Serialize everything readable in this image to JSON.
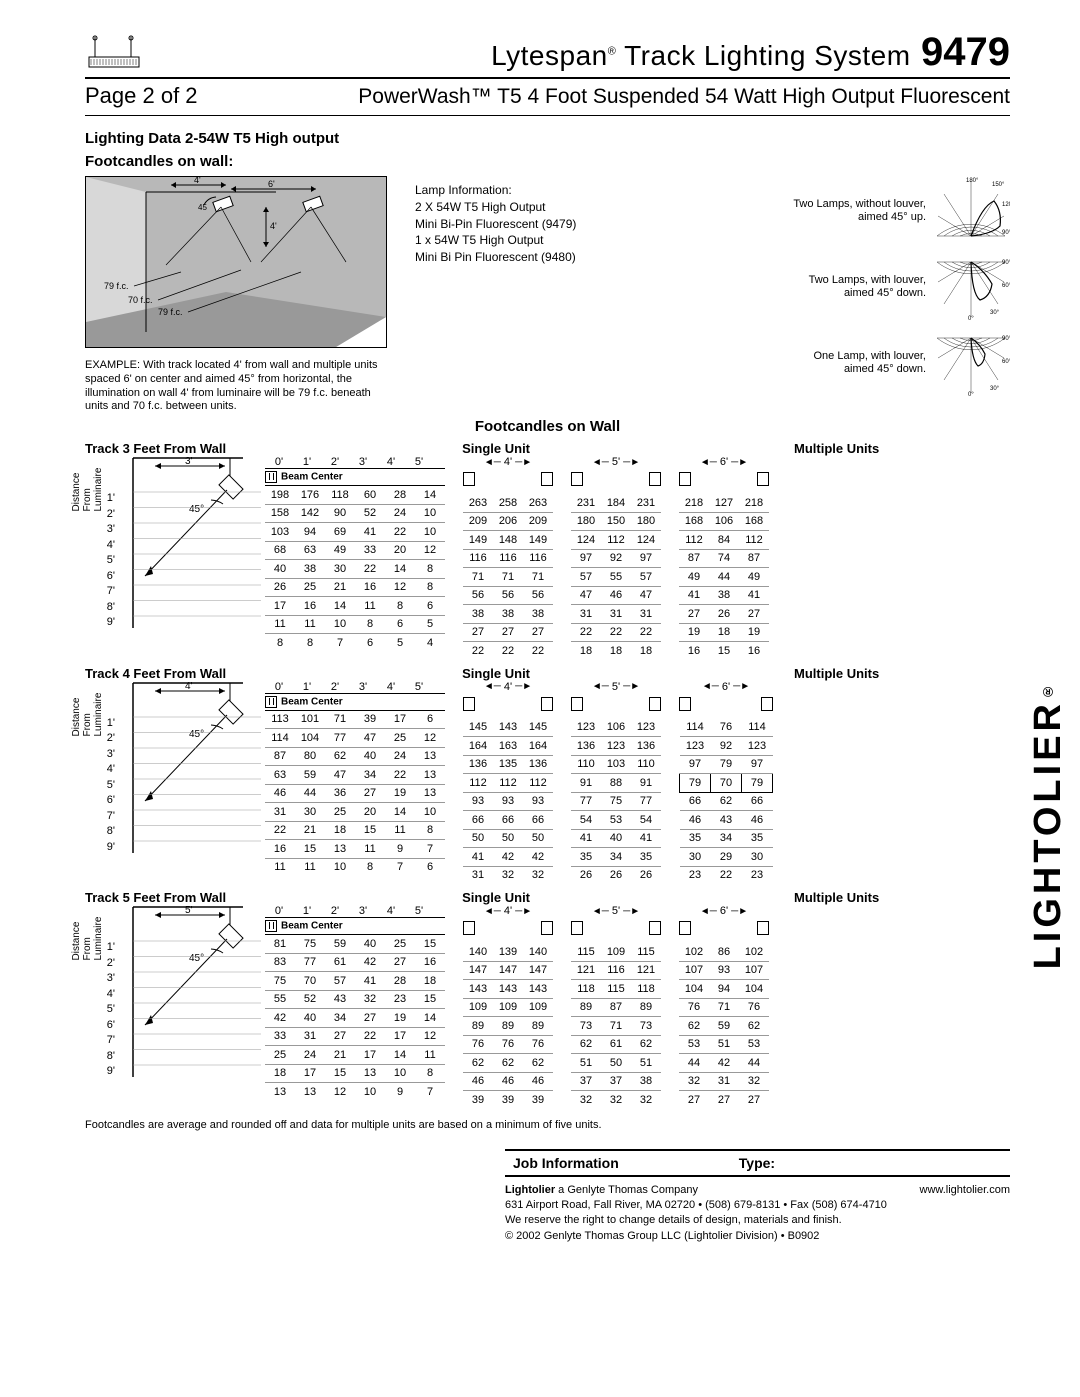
{
  "header": {
    "title": "Lytespan",
    "title_suffix": " Track Lighting System",
    "model": "9479",
    "page": "Page 2 of 2",
    "subtitle": "PowerWash™ T5 4 Foot Suspended 54 Watt High Output Fluorescent"
  },
  "section": {
    "title": "Lighting Data 2-54W T5 High output",
    "sub": "Footcandles on wall:"
  },
  "lamp_info": [
    "Lamp Information:",
    "2 X 54W T5 High Output",
    "Mini Bi-Pin Fluorescent (9479)",
    "1 x 54W T5 High Output",
    "Mini Bi Pin Fluorescent (9480)"
  ],
  "example_caption": "EXAMPLE:  With track located 4' from wall and multiple units spaced 6' on center and aimed 45° from horizontal, the illumination on wall 4' from luminaire will be 79 f.c. beneath units and 70 f.c. between units.",
  "example_labels": {
    "d1": "4'",
    "d2": "6'",
    "angle": "45",
    "d3": "4'",
    "fc1": "79 f.c.",
    "fc2": "70 f.c.",
    "fc3": "79 f.c."
  },
  "polar": [
    {
      "label": "Two Lamps, without louver,\naimed 45° up.",
      "angles": [
        "180°",
        "150°",
        "120°",
        "90°"
      ]
    },
    {
      "label": "Two Lamps, with louver,\naimed 45° down.",
      "angles": [
        "90°",
        "60°",
        "30°",
        "0°"
      ]
    },
    {
      "label": "One Lamp, with louver,\naimed 45° down.",
      "angles": [
        "90°",
        "60°",
        "30°",
        "0°"
      ]
    }
  ],
  "fc_heading": "Footcandles on Wall",
  "row_labels": [
    "1'",
    "2'",
    "3'",
    "4'",
    "5'",
    "6'",
    "7'",
    "8'",
    "9'"
  ],
  "col_headers": [
    "0'",
    "1'",
    "2'",
    "3'",
    "4'",
    "5'"
  ],
  "beam_center": "Beam Center",
  "mu_spacings": [
    "4'",
    "5'",
    "6'"
  ],
  "blocks": [
    {
      "title": "Track 3 Feet From Wall",
      "single_title": "Single Unit",
      "mu_title": "Multiple  Units",
      "diag_dim": "3'",
      "angle": "45°",
      "single": [
        [
          198,
          176,
          118,
          60,
          28,
          14
        ],
        [
          158,
          142,
          90,
          52,
          24,
          10
        ],
        [
          103,
          94,
          69,
          41,
          22,
          10
        ],
        [
          68,
          63,
          49,
          33,
          20,
          12
        ],
        [
          40,
          38,
          30,
          22,
          14,
          8
        ],
        [
          26,
          25,
          21,
          16,
          12,
          8
        ],
        [
          17,
          16,
          14,
          11,
          8,
          6
        ],
        [
          11,
          11,
          10,
          8,
          6,
          5
        ],
        [
          8,
          8,
          7,
          6,
          5,
          4
        ]
      ],
      "mu": {
        "4": [
          [
            263,
            258,
            263
          ],
          [
            209,
            206,
            209
          ],
          [
            149,
            148,
            149
          ],
          [
            116,
            116,
            116
          ],
          [
            71,
            71,
            71
          ],
          [
            56,
            56,
            56
          ],
          [
            38,
            38,
            38
          ],
          [
            27,
            27,
            27
          ],
          [
            22,
            22,
            22
          ]
        ],
        "5": [
          [
            231,
            184,
            231
          ],
          [
            180,
            150,
            180
          ],
          [
            124,
            112,
            124
          ],
          [
            97,
            92,
            97
          ],
          [
            57,
            55,
            57
          ],
          [
            47,
            46,
            47
          ],
          [
            31,
            31,
            31
          ],
          [
            22,
            22,
            22
          ],
          [
            18,
            18,
            18
          ]
        ],
        "6": [
          [
            218,
            127,
            218
          ],
          [
            168,
            106,
            168
          ],
          [
            112,
            84,
            112
          ],
          [
            87,
            74,
            87
          ],
          [
            49,
            44,
            49
          ],
          [
            41,
            38,
            41
          ],
          [
            27,
            26,
            27
          ],
          [
            19,
            18,
            19
          ],
          [
            16,
            15,
            16
          ]
        ]
      }
    },
    {
      "title": "Track 4 Feet From Wall",
      "single_title": "Single Unit",
      "mu_title": "Multiple  Units",
      "diag_dim": "4'",
      "angle": "45°",
      "single": [
        [
          113,
          101,
          71,
          39,
          17,
          6
        ],
        [
          114,
          104,
          77,
          47,
          25,
          12
        ],
        [
          87,
          80,
          62,
          40,
          24,
          13
        ],
        [
          63,
          59,
          47,
          34,
          22,
          13
        ],
        [
          46,
          44,
          36,
          27,
          19,
          13
        ],
        [
          31,
          30,
          25,
          20,
          14,
          10
        ],
        [
          22,
          21,
          18,
          15,
          11,
          8
        ],
        [
          16,
          15,
          13,
          11,
          9,
          7
        ],
        [
          11,
          11,
          10,
          8,
          7,
          6
        ]
      ],
      "mu": {
        "4": [
          [
            145,
            143,
            145
          ],
          [
            164,
            163,
            164
          ],
          [
            136,
            135,
            136
          ],
          [
            112,
            112,
            112
          ],
          [
            93,
            93,
            93
          ],
          [
            66,
            66,
            66
          ],
          [
            50,
            50,
            50
          ],
          [
            41,
            42,
            42
          ],
          [
            31,
            32,
            32
          ]
        ],
        "5": [
          [
            123,
            106,
            123
          ],
          [
            136,
            123,
            136
          ],
          [
            110,
            103,
            110
          ],
          [
            91,
            88,
            91
          ],
          [
            77,
            75,
            77
          ],
          [
            54,
            53,
            54
          ],
          [
            41,
            40,
            41
          ],
          [
            35,
            34,
            35
          ],
          [
            26,
            26,
            26
          ]
        ],
        "6": [
          [
            114,
            76,
            114
          ],
          [
            123,
            92,
            123
          ],
          [
            97,
            79,
            97
          ],
          [
            79,
            70,
            79
          ],
          [
            66,
            62,
            66
          ],
          [
            46,
            43,
            46
          ],
          [
            35,
            34,
            35
          ],
          [
            30,
            29,
            30
          ],
          [
            23,
            22,
            23
          ]
        ]
      },
      "box_row": 3,
      "box_col_group": "6"
    },
    {
      "title": "Track 5 Feet From Wall",
      "single_title": "Single Unit",
      "mu_title": "Multiple  Units",
      "diag_dim": "5'",
      "angle": "45°",
      "single": [
        [
          81,
          75,
          59,
          40,
          25,
          15
        ],
        [
          83,
          77,
          61,
          42,
          27,
          16
        ],
        [
          75,
          70,
          57,
          41,
          28,
          18
        ],
        [
          55,
          52,
          43,
          32,
          23,
          15
        ],
        [
          42,
          40,
          34,
          27,
          19,
          14
        ],
        [
          33,
          31,
          27,
          22,
          17,
          12
        ],
        [
          25,
          24,
          21,
          17,
          14,
          11
        ],
        [
          18,
          17,
          15,
          13,
          10,
          8
        ],
        [
          13,
          13,
          12,
          10,
          9,
          7
        ]
      ],
      "mu": {
        "4": [
          [
            140,
            139,
            140
          ],
          [
            147,
            147,
            147
          ],
          [
            143,
            143,
            143
          ],
          [
            109,
            109,
            109
          ],
          [
            89,
            89,
            89
          ],
          [
            76,
            76,
            76
          ],
          [
            62,
            62,
            62
          ],
          [
            46,
            46,
            46
          ],
          [
            39,
            39,
            39
          ]
        ],
        "5": [
          [
            115,
            109,
            115
          ],
          [
            121,
            116,
            121
          ],
          [
            118,
            115,
            118
          ],
          [
            89,
            87,
            89
          ],
          [
            73,
            71,
            73
          ],
          [
            62,
            61,
            62
          ],
          [
            51,
            50,
            51
          ],
          [
            37,
            37,
            38
          ],
          [
            32,
            32,
            32
          ]
        ],
        "6": [
          [
            102,
            86,
            102
          ],
          [
            107,
            93,
            107
          ],
          [
            104,
            94,
            104
          ],
          [
            76,
            71,
            76
          ],
          [
            62,
            59,
            62
          ],
          [
            53,
            51,
            53
          ],
          [
            44,
            42,
            44
          ],
          [
            32,
            31,
            32
          ],
          [
            27,
            27,
            27
          ]
        ]
      }
    }
  ],
  "footnote": "Footcandles are average and rounded off and data for multiple units are based on a minimum of five units.",
  "job": {
    "label": "Job Information",
    "type": "Type:"
  },
  "footer": {
    "brand": "Lightolier",
    "brand_desc": " a Genlyte Thomas Company",
    "url": "www.lightolier.com",
    "addr": "631 Airport Road, Fall River, MA 02720 • (508) 679-8131 • Fax (508) 674-4710",
    "disclaimer": "We reserve the right to change details of design, materials and finish.",
    "copyright": "© 2002 Genlyte Thomas Group LLC (Lightolier Division) • B0902"
  },
  "brand_vertical": "LIGHTOLIER",
  "distance_label": "Distance From Luminaire"
}
